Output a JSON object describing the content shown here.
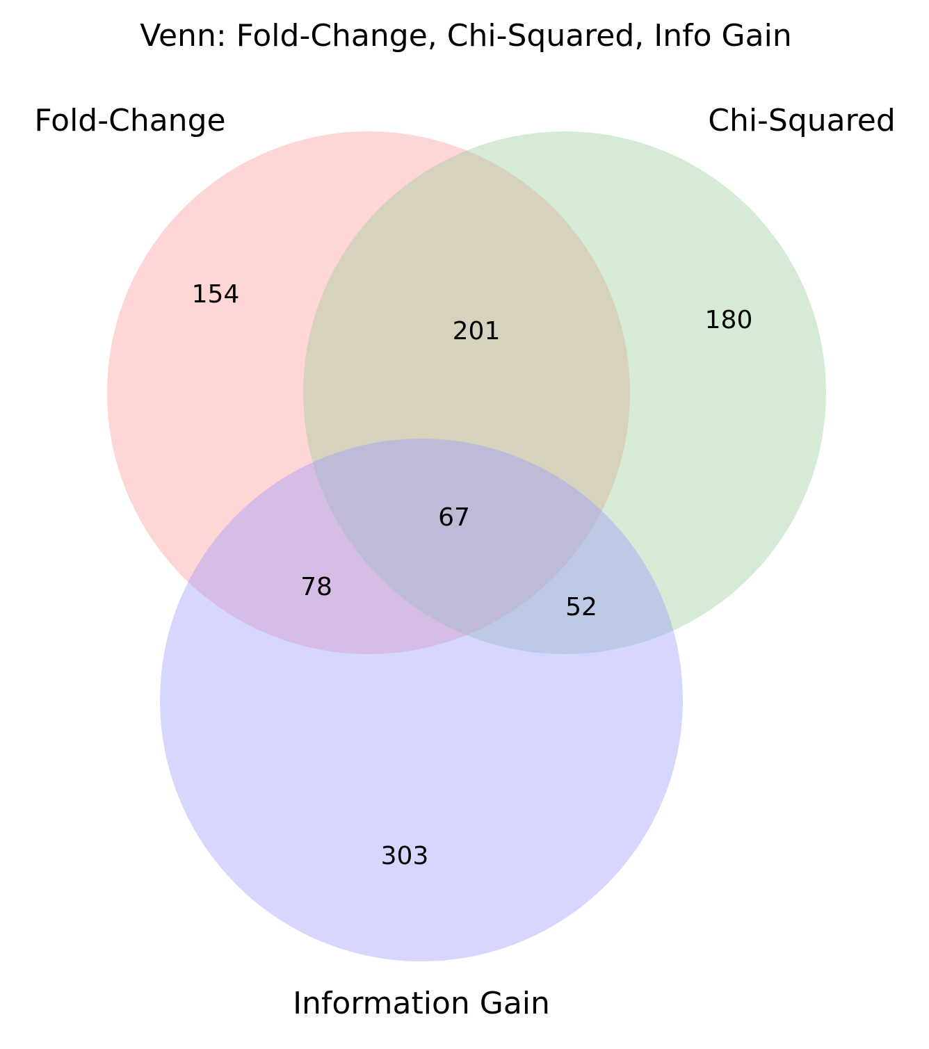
{
  "title": "Venn: Fold-Change, Chi-Squared, Info Gain",
  "chart_data": {
    "type": "venn",
    "sets": [
      {
        "name": "Fold-Change",
        "color": "#ff9999"
      },
      {
        "name": "Chi-Squared",
        "color": "#99cc99"
      },
      {
        "name": "Information Gain",
        "color": "#9999ff"
      }
    ],
    "regions": {
      "fold_change_only": 154,
      "chi_squared_only": 180,
      "information_gain_only": 303,
      "fold_change_and_chi_squared": 201,
      "fold_change_and_information_gain": 78,
      "chi_squared_and_information_gain": 52,
      "all_three": 67
    }
  }
}
